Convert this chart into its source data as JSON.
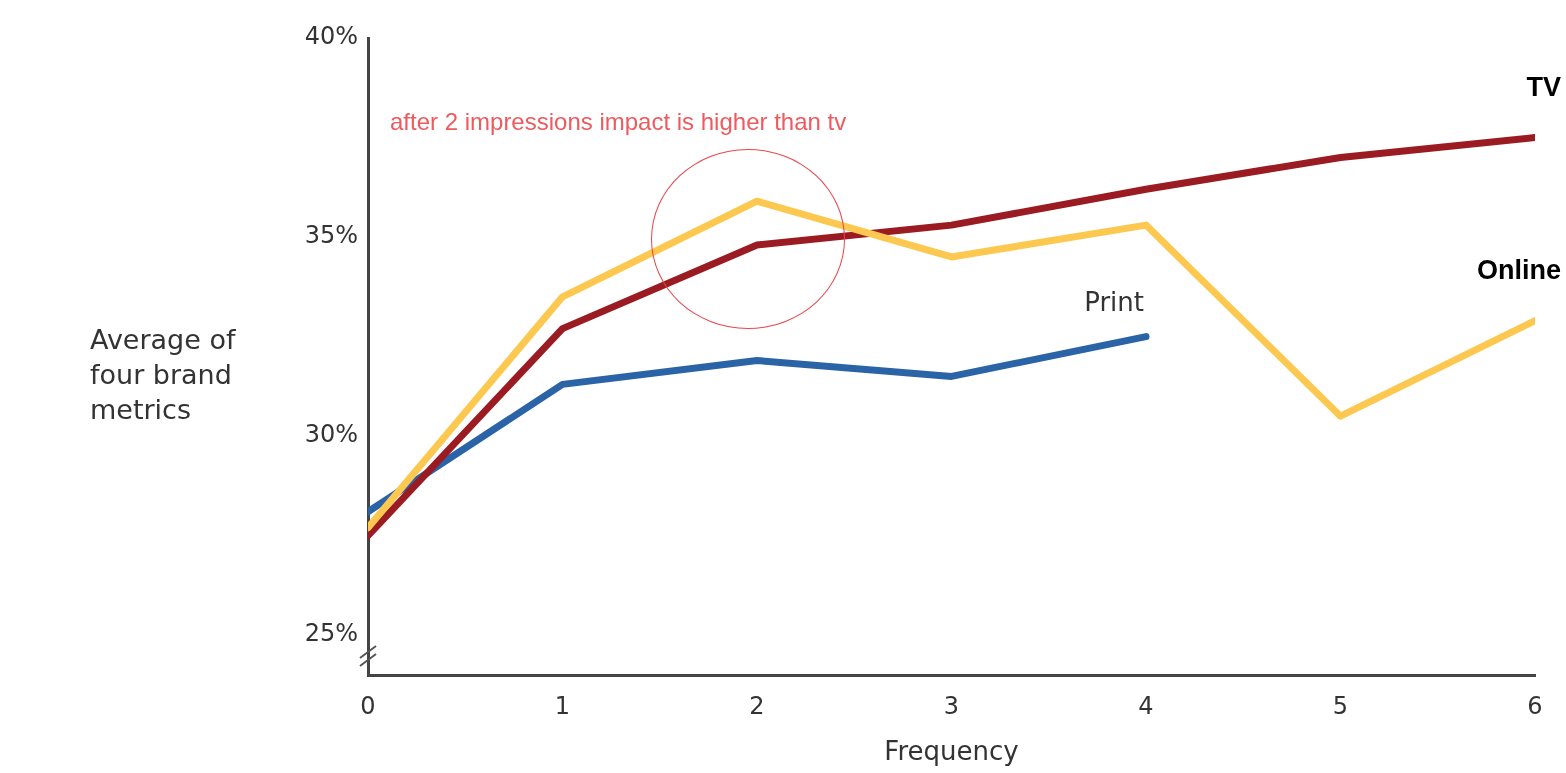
{
  "chart_data": {
    "type": "line",
    "xlabel": "Frequency",
    "ylabel": "Average of four brand metrics",
    "x": [
      0,
      1,
      2,
      3,
      4,
      5,
      6
    ],
    "xlim": [
      0,
      6
    ],
    "xticks": [
      0,
      1,
      2,
      3,
      4,
      5,
      6
    ],
    "ylim": [
      24,
      40
    ],
    "yticks": [
      {
        "value": 25,
        "label": "25%"
      },
      {
        "value": 30,
        "label": "30%"
      },
      {
        "value": 35,
        "label": "35%"
      },
      {
        "value": 40,
        "label": "40%"
      }
    ],
    "grid": false,
    "legend": false,
    "marker": "none",
    "line_style": "solid",
    "annotations": [
      "after 2 impressions impact is higher than tv"
    ],
    "series": [
      {
        "name": "Online",
        "color": "#fdc850",
        "values": [
          27.7,
          33.5,
          35.9,
          34.5,
          35.3,
          30.5,
          32.9
        ]
      },
      {
        "name": "TV",
        "color": "#9b1b22",
        "values": [
          27.5,
          32.7,
          34.8,
          35.3,
          36.2,
          37.0,
          37.5
        ]
      },
      {
        "name": "Print",
        "color": "#2a63a6",
        "values": [
          28.1,
          31.3,
          31.9,
          31.5,
          32.5,
          null,
          null
        ]
      }
    ]
  }
}
